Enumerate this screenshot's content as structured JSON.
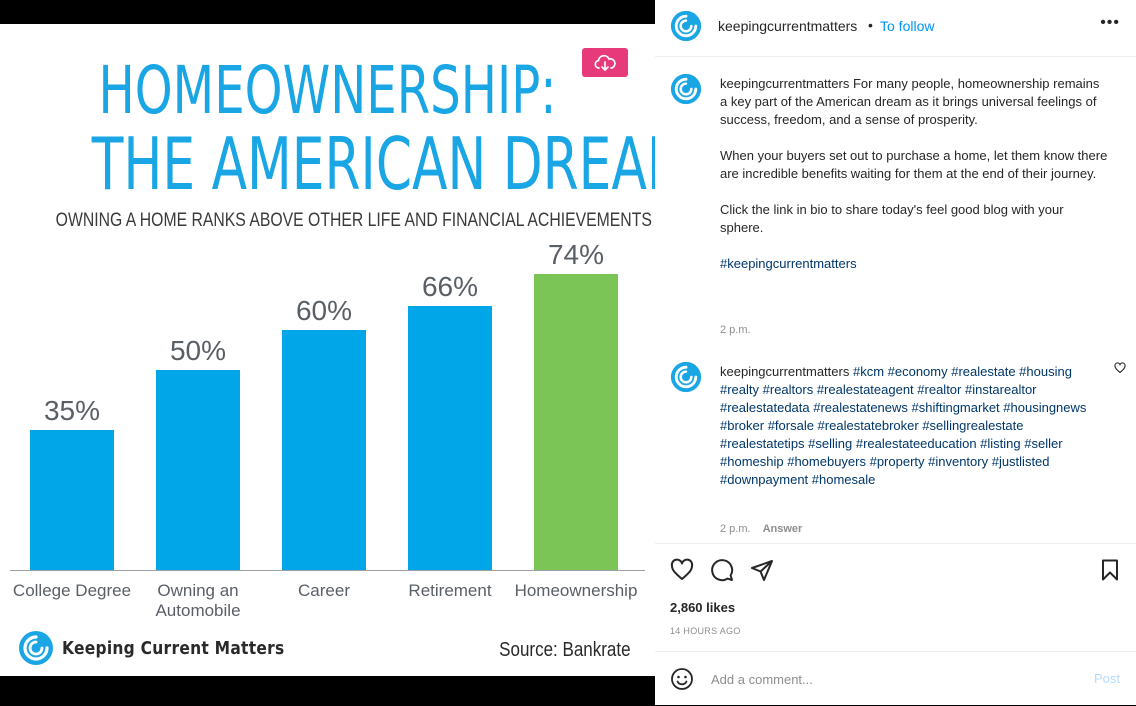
{
  "post_image": {
    "title_line1": "HOMEOWNERSHIP:",
    "title_line2": "THE AMERICAN DREAM",
    "subtitle": "OWNING A HOME RANKS ABOVE OTHER LIFE AND FINANCIAL ACHIEVEMENTS",
    "brand": "Keeping Current Matters",
    "source": "Source: Bankrate",
    "download_icon": "cloud-download-icon"
  },
  "chart_data": {
    "type": "bar",
    "title": "HOMEOWNERSHIP: THE AMERICAN DREAM",
    "subtitle": "OWNING A HOME RANKS ABOVE OTHER LIFE AND FINANCIAL ACHIEVEMENTS",
    "categories": [
      "College Degree",
      "Owning an Automobile",
      "Career",
      "Retirement",
      "Homeownership"
    ],
    "category_lines": [
      [
        "College Degree"
      ],
      [
        "Owning an",
        "Automobile"
      ],
      [
        "Career"
      ],
      [
        "Retirement"
      ],
      [
        "Homeownership"
      ]
    ],
    "values": [
      35,
      50,
      60,
      66,
      74
    ],
    "value_labels": [
      "35%",
      "50%",
      "60%",
      "66%",
      "74%"
    ],
    "colors": [
      "#00a6e8",
      "#00a6e8",
      "#00a6e8",
      "#00a6e8",
      "#7ac555"
    ],
    "ylim": [
      0,
      80
    ],
    "grid": false,
    "xlabel": "",
    "ylabel": ""
  },
  "header": {
    "username": "keepingcurrentmatters",
    "separator": "•",
    "follow_label": "To follow",
    "more_icon": "more-options-icon",
    "more_label": "•••"
  },
  "caption": {
    "username": "keepingcurrentmatters",
    "paragraph1": "For many people, homeownership remains a key part of the American dream as it brings universal feelings of success, freedom, and a sense of prosperity.",
    "paragraph2": "When your buyers set out to purchase a home, let them know there are incredible benefits waiting for them at the end of their journey.",
    "paragraph3": "Click the link in bio to share today's feel good blog with your sphere.",
    "hashtag": "#keepingcurrentmatters",
    "time": "2 p.m."
  },
  "comment": {
    "username": "keepingcurrentmatters",
    "hashtags": "#kcm #economy #realestate #housing #realty #realtors #realestateagent #realtor #instarealtor #realestatedata #realestatenews #shiftingmarket #housingnews #broker #forsale #realestatebroker #sellingrealestate #realestatetips #selling #realestateeducation #listing #seller #homeship #homebuyers #property #inventory #justlisted #downpayment #homesale",
    "time": "2 p.m.",
    "answer_label": "Answer",
    "like_icon": "heart-icon"
  },
  "actions": {
    "like_icon": "heart-icon",
    "comment_icon": "comment-icon",
    "share_icon": "share-icon",
    "save_icon": "bookmark-icon",
    "likes": "2,860 likes",
    "timestamp": "14 HOURS AGO"
  },
  "composer": {
    "emoji_icon": "emoji-icon",
    "placeholder": "Add a comment...",
    "post_label": "Post"
  },
  "colors": {
    "accent_blue": "#0095f6",
    "tag_blue": "#00376b",
    "bar_blue": "#00a6e8",
    "bar_green": "#7ac555",
    "title_blue": "#1aa6e4",
    "download_pink": "#e63a7a"
  }
}
